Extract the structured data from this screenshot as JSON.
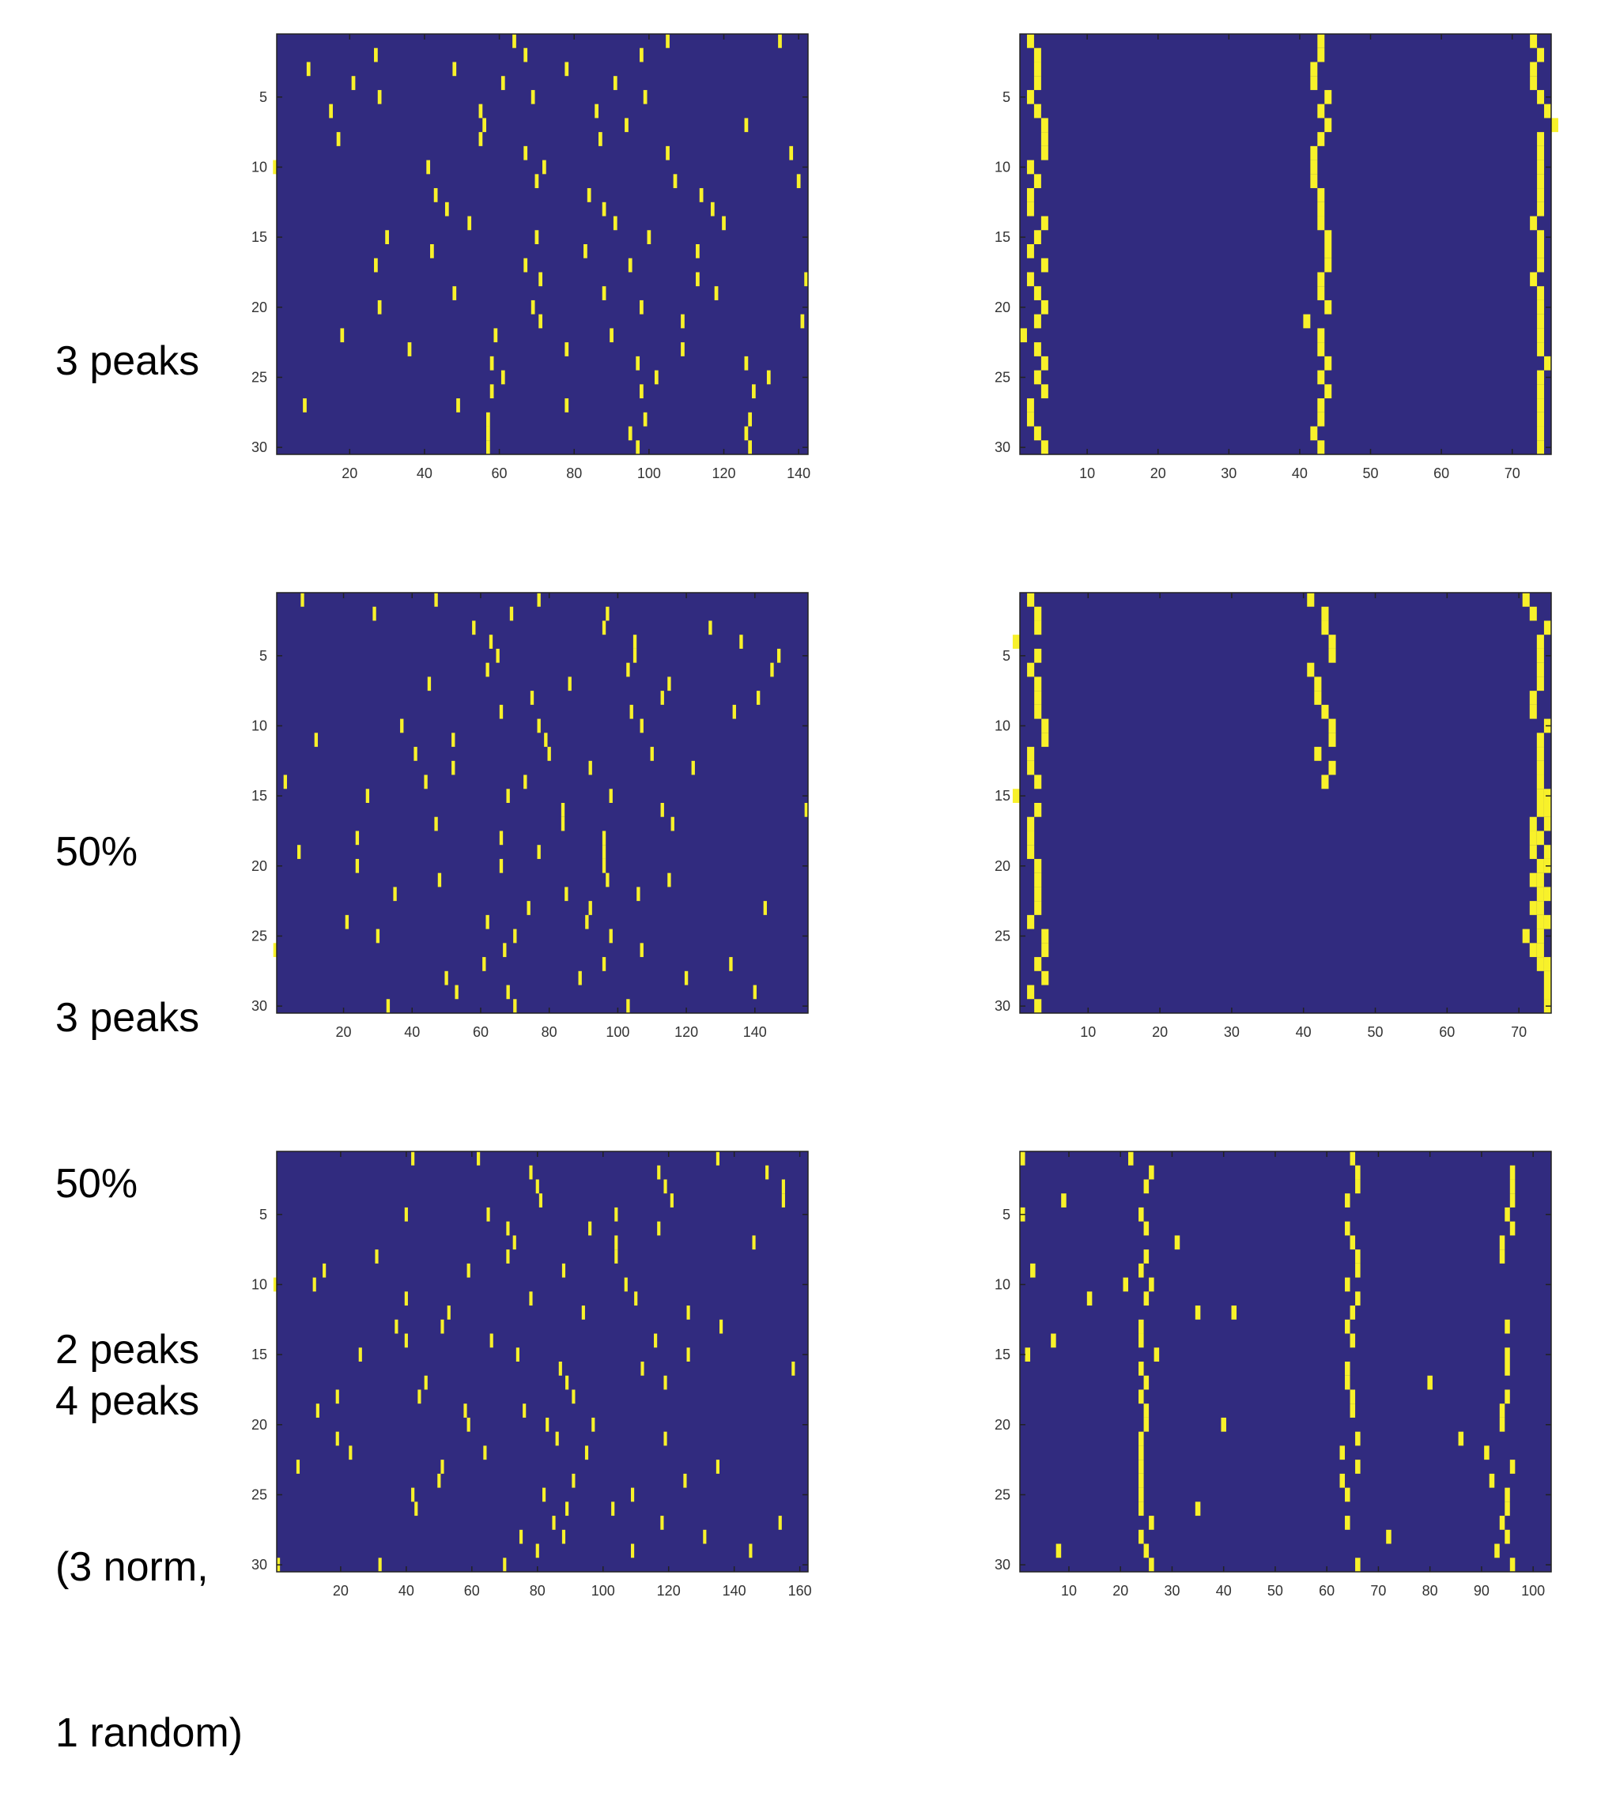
{
  "colors": {
    "background": "#312b7f",
    "event": "#f8f12a",
    "axis": "#222222",
    "tick_text": "#333333"
  },
  "row_labels": [
    [
      "3 peaks"
    ],
    [
      "50%",
      "3 peaks",
      "50%",
      "2 peaks"
    ],
    [
      "4 peaks",
      "(3 norm,",
      "1 random)"
    ]
  ],
  "chart_data": [
    {
      "type": "heatmap",
      "title": "",
      "xlabel": "",
      "ylabel": "",
      "xlim": [
        0.5,
        142.5
      ],
      "ylim": [
        0.5,
        30.5
      ],
      "xticks": [
        20,
        40,
        60,
        80,
        100,
        120,
        140
      ],
      "yticks": [
        5,
        10,
        15,
        20,
        25,
        30
      ],
      "rows": [
        [
          64,
          105,
          135
        ],
        [
          27,
          67,
          98
        ],
        [
          9,
          48,
          78
        ],
        [
          21,
          61,
          91
        ],
        [
          28,
          69,
          99
        ],
        [
          15,
          55,
          86
        ],
        [
          56,
          94,
          126
        ],
        [
          17,
          55,
          87
        ],
        [
          67,
          105,
          138
        ],
        [
          0,
          41,
          72
        ],
        [
          70,
          107,
          140
        ],
        [
          43,
          84,
          114
        ],
        [
          46,
          88,
          117
        ],
        [
          52,
          91,
          120
        ],
        [
          30,
          70,
          100
        ],
        [
          42,
          83,
          113
        ],
        [
          27,
          67,
          95
        ],
        [
          71,
          113,
          142
        ],
        [
          48,
          88,
          118
        ],
        [
          28,
          69,
          98
        ],
        [
          71,
          109,
          141
        ],
        [
          18,
          59,
          90
        ],
        [
          36,
          78,
          109
        ],
        [
          58,
          97,
          126
        ],
        [
          61,
          102,
          132
        ],
        [
          58,
          98,
          128
        ],
        [
          8,
          49,
          78
        ],
        [
          57,
          99,
          127
        ],
        [
          57,
          95,
          126
        ],
        [
          57,
          97,
          127
        ]
      ]
    },
    {
      "type": "heatmap",
      "title": "",
      "xlabel": "",
      "ylabel": "",
      "xlim": [
        0.5,
        75.5
      ],
      "ylim": [
        0.5,
        30.5
      ],
      "xticks": [
        10,
        20,
        30,
        40,
        50,
        60,
        70
      ],
      "yticks": [
        5,
        10,
        15,
        20,
        25,
        30
      ],
      "rows": [
        [
          2,
          43,
          73
        ],
        [
          3,
          43,
          74
        ],
        [
          3,
          42,
          73
        ],
        [
          3,
          42,
          73
        ],
        [
          2,
          44,
          74
        ],
        [
          3,
          43,
          75
        ],
        [
          4,
          44,
          76
        ],
        [
          4,
          43,
          74
        ],
        [
          4,
          42,
          74
        ],
        [
          2,
          42,
          74
        ],
        [
          3,
          42,
          74
        ],
        [
          2,
          43,
          74
        ],
        [
          2,
          43,
          74
        ],
        [
          4,
          43,
          73
        ],
        [
          3,
          44,
          74
        ],
        [
          2,
          44,
          74
        ],
        [
          4,
          44,
          74
        ],
        [
          2,
          43,
          73
        ],
        [
          3,
          43,
          74
        ],
        [
          4,
          44,
          74
        ],
        [
          3,
          41,
          74
        ],
        [
          1,
          43,
          74
        ],
        [
          3,
          43,
          74
        ],
        [
          4,
          44,
          75
        ],
        [
          3,
          43,
          74
        ],
        [
          4,
          44,
          74
        ],
        [
          2,
          43,
          74
        ],
        [
          2,
          43,
          74
        ],
        [
          3,
          42,
          74
        ],
        [
          4,
          43,
          74
        ]
      ]
    },
    {
      "type": "heatmap",
      "title": "",
      "xlabel": "",
      "ylabel": "",
      "xlim": [
        0.5,
        155.5
      ],
      "ylim": [
        0.5,
        30.5
      ],
      "xticks": [
        20,
        40,
        60,
        80,
        100,
        120,
        140
      ],
      "yticks": [
        5,
        10,
        15,
        20,
        25,
        30
      ],
      "rows": [
        [
          8,
          47,
          77
        ],
        [
          29,
          69,
          97
        ],
        [
          58,
          96,
          127
        ],
        [
          63,
          105,
          136
        ],
        [
          65,
          105,
          147
        ],
        [
          62,
          103,
          145
        ],
        [
          45,
          86,
          115
        ],
        [
          75,
          113,
          141
        ],
        [
          66,
          104,
          134
        ],
        [
          37,
          77,
          107
        ],
        [
          12,
          52,
          79
        ],
        [
          41,
          80,
          110
        ],
        [
          52,
          92,
          122
        ],
        [
          3,
          44,
          73
        ],
        [
          27,
          68,
          98
        ],
        [
          84,
          113,
          155
        ],
        [
          47,
          84,
          116
        ],
        [
          24,
          66,
          96
        ],
        [
          7,
          77,
          96
        ],
        [
          24,
          66,
          96
        ],
        [
          48,
          97,
          115
        ],
        [
          35,
          85,
          106
        ],
        [
          74,
          92,
          143
        ],
        [
          21,
          62,
          91
        ],
        [
          30,
          70,
          98
        ],
        [
          0,
          67,
          107
        ],
        [
          61,
          96,
          133
        ],
        [
          50,
          89,
          120
        ],
        [
          53,
          68,
          140
        ],
        [
          33,
          70,
          103
        ]
      ]
    },
    {
      "type": "heatmap",
      "title": "",
      "xlabel": "",
      "ylabel": "",
      "xlim": [
        0.5,
        74.5
      ],
      "ylim": [
        0.5,
        30.5
      ],
      "xticks": [
        10,
        20,
        30,
        40,
        50,
        60,
        70
      ],
      "yticks": [
        5,
        10,
        15,
        20,
        25,
        30
      ],
      "rows": [
        [
          2,
          41,
          71
        ],
        [
          3,
          43,
          72
        ],
        [
          3,
          43,
          74
        ],
        [
          0,
          44,
          73
        ],
        [
          3,
          44,
          73
        ],
        [
          2,
          41,
          73
        ],
        [
          3,
          42,
          73
        ],
        [
          3,
          42,
          72
        ],
        [
          3,
          43,
          72
        ],
        [
          4,
          44,
          74
        ],
        [
          4,
          44,
          73
        ],
        [
          2,
          42,
          73
        ],
        [
          2,
          44,
          73
        ],
        [
          3,
          43,
          73
        ],
        [
          0,
          73,
          74
        ],
        [
          3,
          73,
          74
        ],
        [
          2,
          72,
          74
        ],
        [
          2,
          72,
          73
        ],
        [
          2,
          72,
          74
        ],
        [
          3,
          73,
          74
        ],
        [
          3,
          72,
          73
        ],
        [
          3,
          73,
          74
        ],
        [
          3,
          72,
          73
        ],
        [
          2,
          73,
          74
        ],
        [
          4,
          71,
          73
        ],
        [
          4,
          72,
          73
        ],
        [
          3,
          73,
          74
        ],
        [
          4,
          74,
          74
        ],
        [
          2,
          74,
          74
        ],
        [
          3,
          74,
          74
        ]
      ]
    },
    {
      "type": "heatmap",
      "title": "",
      "xlabel": "",
      "ylabel": "",
      "xlim": [
        0.5,
        162.5
      ],
      "ylim": [
        0.5,
        30.5
      ],
      "xticks": [
        20,
        40,
        60,
        80,
        100,
        120,
        140,
        160
      ],
      "yticks": [
        5,
        10,
        15,
        20,
        25,
        30
      ],
      "rows": [
        [
          42,
          62,
          135
        ],
        [
          78,
          117,
          150
        ],
        [
          80,
          119,
          155
        ],
        [
          81,
          121,
          155
        ],
        [
          40,
          65,
          104
        ],
        [
          71,
          96,
          117
        ],
        [
          73,
          104,
          146
        ],
        [
          31,
          71,
          104
        ],
        [
          15,
          59,
          88
        ],
        [
          0,
          12,
          107
        ],
        [
          40,
          78,
          110
        ],
        [
          53,
          94,
          126
        ],
        [
          37,
          51,
          136
        ],
        [
          40,
          66,
          116
        ],
        [
          26,
          74,
          126
        ],
        [
          87,
          112,
          158
        ],
        [
          46,
          89,
          119
        ],
        [
          19,
          44,
          91
        ],
        [
          13,
          58,
          76
        ],
        [
          59,
          83,
          97
        ],
        [
          19,
          86,
          119
        ],
        [
          23,
          64,
          95
        ],
        [
          7,
          51,
          135
        ],
        [
          50,
          91,
          125
        ],
        [
          42,
          82,
          109
        ],
        [
          43,
          89,
          103
        ],
        [
          85,
          118,
          154
        ],
        [
          75,
          88,
          131
        ],
        [
          80,
          109,
          145
        ],
        [
          1,
          32,
          70
        ]
      ]
    },
    {
      "type": "heatmap",
      "title": "",
      "xlabel": "",
      "ylabel": "",
      "xlim": [
        0.5,
        103.5
      ],
      "ylim": [
        0.5,
        30.5
      ],
      "xticks": [
        10,
        20,
        30,
        40,
        50,
        60,
        70,
        80,
        90,
        100
      ],
      "yticks": [
        5,
        10,
        15,
        20,
        25,
        30
      ],
      "rows": [
        [
          1,
          22,
          65
        ],
        [
          26,
          66,
          96
        ],
        [
          25,
          66,
          96
        ],
        [
          9,
          64,
          96
        ],
        [
          1,
          24,
          95
        ],
        [
          25,
          64,
          96
        ],
        [
          31,
          65,
          94
        ],
        [
          25,
          66,
          94
        ],
        [
          3,
          24,
          66
        ],
        [
          21,
          26,
          64
        ],
        [
          14,
          25,
          66
        ],
        [
          35,
          42,
          65
        ],
        [
          24,
          64,
          95
        ],
        [
          7,
          24,
          65
        ],
        [
          2,
          27,
          95
        ],
        [
          24,
          64,
          95
        ],
        [
          25,
          64,
          80
        ],
        [
          24,
          65,
          95
        ],
        [
          25,
          65,
          94
        ],
        [
          25,
          40,
          94
        ],
        [
          24,
          66,
          86
        ],
        [
          24,
          63,
          91
        ],
        [
          24,
          66,
          96
        ],
        [
          24,
          63,
          92
        ],
        [
          24,
          64,
          95
        ],
        [
          24,
          35,
          95
        ],
        [
          26,
          64,
          94
        ],
        [
          24,
          72,
          95
        ],
        [
          8,
          25,
          93
        ],
        [
          26,
          66,
          96
        ]
      ]
    }
  ]
}
